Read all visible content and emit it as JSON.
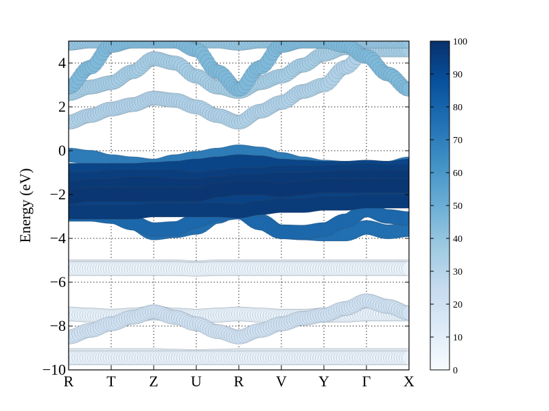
{
  "chart_data": {
    "type": "scatter",
    "subtype": "electronic band structure with projected weights (fat bands)",
    "title": "",
    "xlabel": "",
    "ylabel": "Energy (eV)",
    "x_ticks": [
      "R",
      "T",
      "Z",
      "U",
      "R",
      "V",
      "Y",
      "Γ",
      "X"
    ],
    "xlim": [
      0,
      8
    ],
    "ylim": [
      -10,
      5
    ],
    "y_ticks": [
      -10,
      -8,
      -6,
      -4,
      -2,
      0,
      2,
      4
    ],
    "y_tick_labels": [
      "−10",
      "−8",
      "−6",
      "−4",
      "−2",
      "0",
      "2",
      "4"
    ],
    "grid": true,
    "colormap": "Blues",
    "colormap_stops": [
      "#f7fbff",
      "#deebf7",
      "#c6dbef",
      "#9ecae1",
      "#6baed6",
      "#4292c6",
      "#2171b5",
      "#08519c",
      "#08306b"
    ],
    "colorbar": {
      "position": "right",
      "range": [
        0,
        100
      ],
      "ticks": [
        0,
        10,
        20,
        30,
        40,
        50,
        60,
        70,
        80,
        90,
        100
      ],
      "tick_labels": [
        "0",
        "10",
        "20",
        "30",
        "40",
        "50",
        "60",
        "70",
        "80",
        "90",
        "100"
      ]
    },
    "k_x": [
      0,
      0.5,
      1,
      1.5,
      2,
      2.5,
      3,
      3.5,
      4,
      4.5,
      5,
      5.5,
      6,
      6.5,
      7,
      7.5,
      8
    ],
    "series": [
      {
        "energies": [
          -9.35,
          -9.35,
          -9.35,
          -9.35,
          -9.35,
          -9.38,
          -9.4,
          -9.38,
          -9.35,
          -9.35,
          -9.35,
          -9.35,
          -9.35,
          -9.35,
          -9.35,
          -9.35,
          -9.35
        ],
        "weight": 5
      },
      {
        "energies": [
          -9.45,
          -9.45,
          -9.45,
          -9.45,
          -9.45,
          -9.45,
          -9.45,
          -9.45,
          -9.45,
          -9.45,
          -9.45,
          -9.45,
          -9.45,
          -9.45,
          -9.45,
          -9.45,
          -9.45
        ],
        "weight": 7
      },
      {
        "energies": [
          -8.5,
          -8.2,
          -7.9,
          -7.6,
          -7.35,
          -7.6,
          -7.9,
          -8.25,
          -8.5,
          -8.2,
          -7.9,
          -7.65,
          -7.5,
          -7.2,
          -6.85,
          -7.1,
          -7.4
        ],
        "weight": 20
      },
      {
        "energies": [
          -7.45,
          -7.5,
          -7.55,
          -7.5,
          -7.4,
          -7.5,
          -7.55,
          -7.5,
          -7.45,
          -7.5,
          -7.55,
          -7.55,
          -7.5,
          -7.5,
          -7.45,
          -7.45,
          -7.45
        ],
        "weight": 8
      },
      {
        "energies": [
          -5.3,
          -5.3,
          -5.3,
          -5.3,
          -5.3,
          -5.3,
          -5.35,
          -5.3,
          -5.3,
          -5.3,
          -5.3,
          -5.3,
          -5.3,
          -5.3,
          -5.3,
          -5.3,
          -5.3
        ],
        "weight": 4
      },
      {
        "energies": [
          -5.38,
          -5.38,
          -5.38,
          -5.38,
          -5.38,
          -5.38,
          -5.4,
          -5.38,
          -5.38,
          -5.38,
          -5.38,
          -5.38,
          -5.38,
          -5.38,
          -5.38,
          -5.38,
          -5.38
        ],
        "weight": 6
      },
      {
        "energies": [
          -2.9,
          -2.9,
          -3.0,
          -3.3,
          -3.6,
          -3.55,
          -3.2,
          -2.9,
          -2.8,
          -3.3,
          -3.7,
          -3.72,
          -3.6,
          -3.2,
          -2.7,
          -3.0,
          -3.1
        ],
        "weight": 78
      },
      {
        "energies": [
          -2.5,
          -2.6,
          -2.8,
          -3.3,
          -3.75,
          -3.65,
          -3.5,
          -3.0,
          -2.6,
          -3.2,
          -3.7,
          -3.75,
          -3.8,
          -3.8,
          -3.5,
          -3.7,
          -3.6
        ],
        "weight": 75
      },
      {
        "energies": [
          -2.8,
          -2.8,
          -2.8,
          -2.8,
          -2.7,
          -2.7,
          -2.7,
          -2.7,
          -2.75,
          -2.6,
          -2.5,
          -2.5,
          -2.4,
          -2.4,
          -2.3,
          -2.3,
          -2.3
        ],
        "weight": 96
      },
      {
        "energies": [
          -2.5,
          -2.5,
          -2.5,
          -2.4,
          -2.3,
          -2.3,
          -2.3,
          -2.3,
          -2.3,
          -2.2,
          -2.1,
          -2.05,
          -2.0,
          -2.0,
          -1.95,
          -2.0,
          -2.0
        ],
        "weight": 93
      },
      {
        "energies": [
          -2.1,
          -2.0,
          -2.0,
          -2.0,
          -2.0,
          -2.0,
          -2.0,
          -1.8,
          -1.7,
          -1.7,
          -1.8,
          -1.7,
          -1.6,
          -1.6,
          -1.6,
          -1.6,
          -1.6
        ],
        "weight": 98
      },
      {
        "energies": [
          -1.7,
          -1.6,
          -1.6,
          -1.5,
          -1.5,
          -1.6,
          -1.6,
          -1.5,
          -1.4,
          -1.4,
          -1.3,
          -1.3,
          -1.25,
          -1.2,
          -1.2,
          -1.2,
          -1.2
        ],
        "weight": 97
      },
      {
        "energies": [
          -1.3,
          -1.3,
          -1.2,
          -1.2,
          -1.2,
          -1.2,
          -1.3,
          -1.2,
          -1.1,
          -1.1,
          -1.0,
          -1.0,
          -1.0,
          -0.95,
          -0.9,
          -0.95,
          -0.95
        ],
        "weight": 95
      },
      {
        "energies": [
          -0.9,
          -0.9,
          -0.9,
          -0.9,
          -0.85,
          -0.8,
          -0.7,
          -0.6,
          -0.5,
          -0.55,
          -0.7,
          -0.75,
          -0.8,
          -0.8,
          -0.75,
          -0.8,
          -0.7
        ],
        "weight": 92
      },
      {
        "energies": [
          -0.2,
          -0.3,
          -0.5,
          -0.6,
          -0.7,
          -0.5,
          -0.35,
          -0.2,
          -0.05,
          -0.15,
          -0.4,
          -0.6,
          -0.75,
          -0.8,
          -0.85,
          -0.8,
          -0.6
        ],
        "weight": 70
      },
      {
        "energies": [
          1.3,
          1.6,
          1.9,
          2.1,
          2.4,
          2.3,
          2.0,
          1.6,
          1.3,
          1.8,
          2.2,
          2.7,
          3.0,
          3.8,
          4.6,
          4.9,
          5.0
        ],
        "weight": 32
      },
      {
        "energies": [
          2.6,
          2.9,
          3.1,
          3.6,
          4.2,
          4.0,
          3.4,
          2.9,
          2.7,
          3.1,
          3.4,
          3.9,
          4.4,
          4.7,
          4.6,
          4.6,
          4.6
        ],
        "weight": 35
      },
      {
        "energies": [
          2.9,
          3.8,
          4.8,
          5.0,
          5.0,
          5.0,
          4.6,
          3.6,
          2.8,
          3.8,
          4.8,
          5.0,
          5.0,
          4.8,
          4.3,
          3.5,
          2.8
        ],
        "weight": 45
      },
      {
        "energies": [
          4.9,
          5.0,
          5.0,
          5.0,
          5.0,
          5.0,
          5.0,
          5.0,
          4.9,
          5.0,
          5.0,
          5.0,
          5.0,
          5.0,
          5.0,
          5.0,
          5.0
        ],
        "weight": 40
      }
    ]
  }
}
